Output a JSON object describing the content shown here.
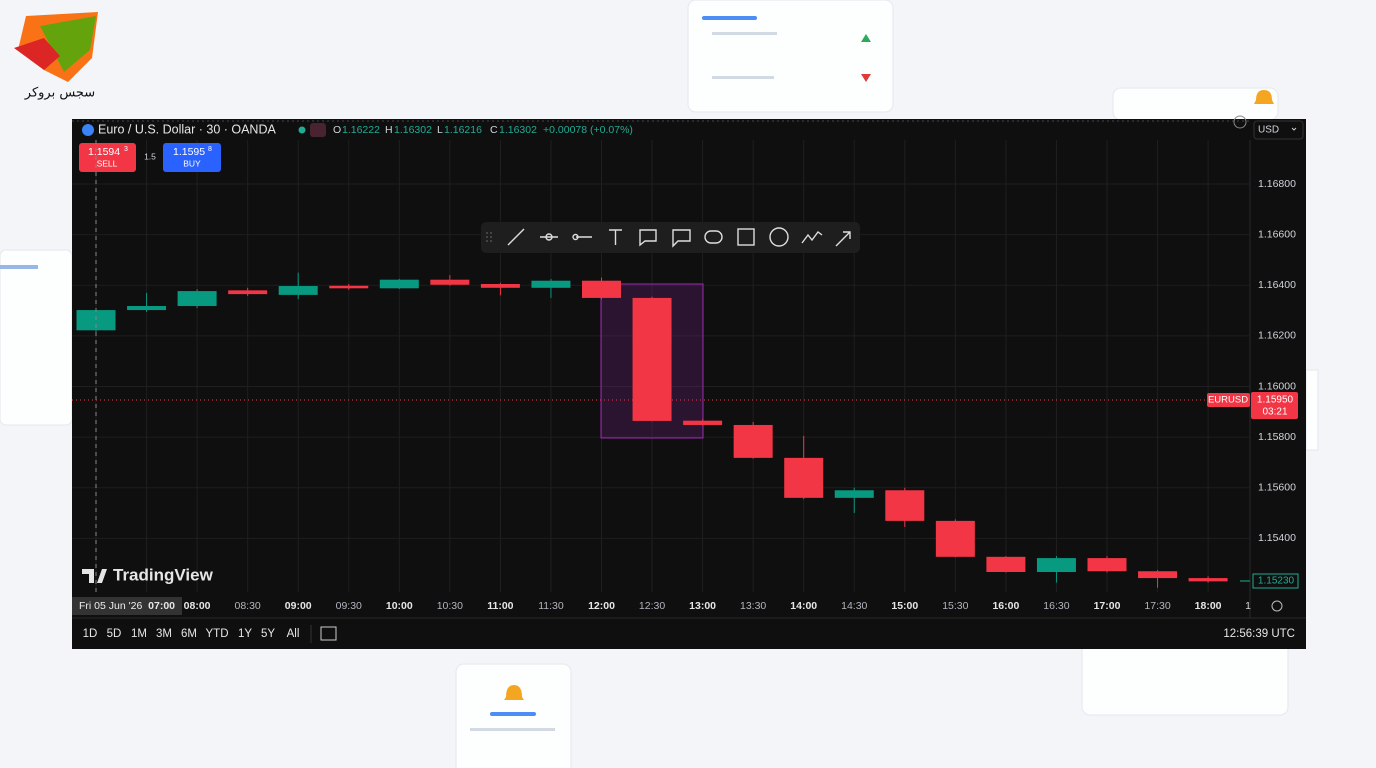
{
  "brand": {
    "name": "سجس بروکر"
  },
  "header": {
    "symbol": "Euro / U.S. Dollar · 30 · OANDA",
    "o": "O",
    "h": "H",
    "l": "L",
    "c": "C",
    "change": "+0.00078 (+0.07%)",
    "currency": "USD"
  },
  "trade": {
    "sell_price": "1.1594",
    "sell_pip": "3",
    "sell": "SELL",
    "spread": "1.5",
    "buy_price": "1.1595",
    "buy_pip": "8",
    "buy": "BUY"
  },
  "price_line": {
    "symbol": "EURUSD",
    "price": "1.15950",
    "countdown": "03:21",
    "last_price": "1.15230"
  },
  "time_axis": {
    "crosshair_date": "Fri 05 Jun '26",
    "cut_label": "1"
  },
  "footer": {
    "ranges": [
      "1D",
      "5D",
      "1M",
      "3M",
      "6M",
      "YTD",
      "1Y",
      "5Y",
      "All"
    ],
    "clock": "12:56:39 UTC",
    "watermark": "TradingView"
  },
  "chart_data": {
    "type": "candlestick",
    "categories": [
      "07:00",
      null,
      "08:00",
      "08:30",
      "09:00",
      "09:30",
      "10:00",
      "10:30",
      "11:00",
      "11:30",
      "12:00",
      "12:30",
      "13:00",
      "13:30",
      "14:00",
      "14:30",
      "15:00",
      "15:30",
      "16:00",
      "16:30",
      "17:00",
      "17:30",
      "18:00"
    ],
    "open": [
      1.16222,
      1.16302,
      1.16318,
      1.1638,
      1.16362,
      1.16398,
      1.16388,
      1.16422,
      1.16405,
      1.1639,
      1.16418,
      1.1635,
      1.15865,
      1.15848,
      1.15718,
      1.1556,
      1.1559,
      1.15469,
      1.15327,
      1.15267,
      1.15322,
      1.1527,
      1.15243
    ],
    "high": [
      1.16302,
      1.1637,
      1.16385,
      1.1639,
      1.1645,
      1.16405,
      1.16425,
      1.1644,
      1.1641,
      1.16425,
      1.1643,
      1.16355,
      1.1587,
      1.1586,
      1.15805,
      1.156,
      1.156,
      1.15475,
      1.1533,
      1.1533,
      1.1533,
      1.15275,
      1.1525
    ],
    "low": [
      1.16216,
      1.16295,
      1.1631,
      1.16358,
      1.16345,
      1.16382,
      1.16385,
      1.16398,
      1.1636,
      1.1635,
      1.16345,
      1.15862,
      1.15845,
      1.15715,
      1.15555,
      1.155,
      1.15445,
      1.15325,
      1.15265,
      1.15225,
      1.15265,
      1.15205,
      1.15225
    ],
    "close": [
      1.16302,
      1.16318,
      1.16377,
      1.16365,
      1.16397,
      1.16388,
      1.16422,
      1.16402,
      1.1639,
      1.16418,
      1.1635,
      1.15864,
      1.15848,
      1.15718,
      1.1556,
      1.1559,
      1.15469,
      1.15327,
      1.15267,
      1.15322,
      1.1527,
      1.15243,
      1.1523
    ],
    "up_color": "#089981",
    "down_color": "#f23645",
    "ylim": [
      1.15188,
      1.16974
    ],
    "yticks": [
      {
        "value": 1.154,
        "label": "1.15400"
      },
      {
        "value": 1.156,
        "label": "1.15600"
      },
      {
        "value": 1.158,
        "label": "1.15800"
      },
      {
        "value": 1.16,
        "label": "1.16000"
      },
      {
        "value": 1.162,
        "label": "1.16200"
      },
      {
        "value": 1.164,
        "label": "1.16400"
      },
      {
        "value": 1.166,
        "label": "1.16600"
      },
      {
        "value": 1.168,
        "label": "1.16800"
      }
    ],
    "grid": true
  }
}
